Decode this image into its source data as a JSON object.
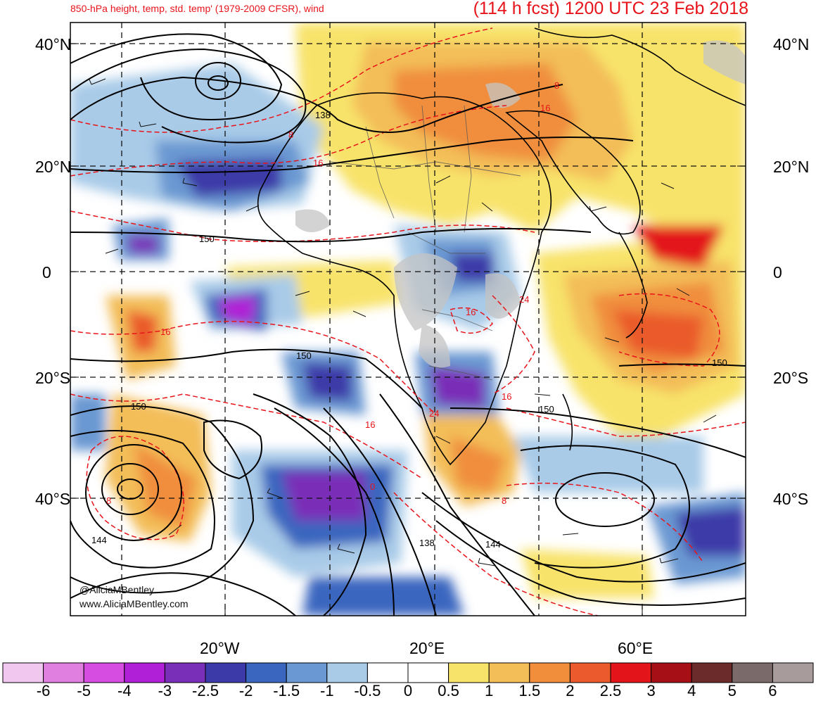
{
  "header": {
    "subtitle": "850-hPa height, temp, std. temp' (1979-2009 CFSR), wind",
    "title": "(114 h fcst) 1200 UTC 23 Feb 2018"
  },
  "axes": {
    "lat_labels": [
      "40°N",
      "20°N",
      "0",
      "20°S",
      "40°S"
    ],
    "lon_labels": [
      "20°W",
      "20°E",
      "60°E"
    ]
  },
  "credits": {
    "twitter": "@AliciaMBentley",
    "website": "www.AliciaMBentley.com"
  },
  "colorbar": {
    "labels": [
      "-6",
      "-5",
      "-4",
      "-3",
      "-2.5",
      "-2",
      "-1.5",
      "-1",
      "-0.5",
      "0",
      "0.5",
      "1",
      "1.5",
      "2",
      "2.5",
      "3",
      "4",
      "5",
      "6"
    ],
    "colors": [
      "#f1c6ef",
      "#e07fe0",
      "#d54ee1",
      "#b020d6",
      "#7a2fb8",
      "#3c3aa8",
      "#3a66bf",
      "#6a98d2",
      "#a9cbe8",
      "#ffffff",
      "#ffffff",
      "#f8e36a",
      "#f3bd58",
      "#f08e3c",
      "#ea5a2c",
      "#e3141a",
      "#a50f15",
      "#6b2b2b",
      "#7a6a6a",
      "#a89b9b"
    ]
  },
  "height_contour_labels": [
    "138",
    "150",
    "150",
    "150",
    "150",
    "144",
    "138",
    "144",
    "150"
  ],
  "temp_contour_labels": [
    "8",
    "16",
    "16",
    "16",
    "24",
    "24",
    "16",
    "8",
    "8",
    "16",
    "0",
    "16",
    "8"
  ],
  "colors": {
    "title": "#e8141b",
    "height_contours": "#000000",
    "temp_contours": "#e8141b",
    "land_gray": "#c4c4c4"
  }
}
